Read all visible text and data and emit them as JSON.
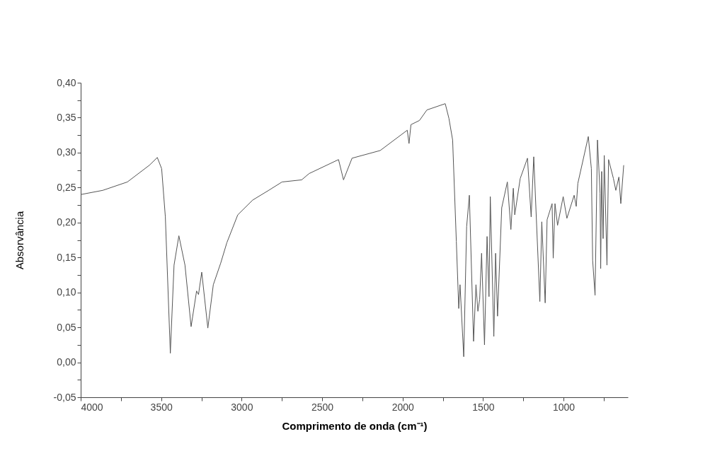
{
  "chart_data": {
    "type": "line",
    "xlabel": "Comprimento de onda (cm⁻¹)",
    "ylabel": "Absorvância",
    "xlim": [
      4000,
      600
    ],
    "ylim": [
      -0.05,
      0.4
    ],
    "xticks": [
      4000,
      {
        "value": 3750,
        "label": null
      },
      3500,
      {
        "value": 3250,
        "label": null
      },
      3000,
      {
        "value": 2750,
        "label": null
      },
      2500,
      {
        "value": 2250,
        "label": null
      },
      2000,
      {
        "value": 1750,
        "label": null
      },
      1500,
      {
        "value": 1250,
        "label": null
      },
      1000,
      {
        "value": 750,
        "label": null
      }
    ],
    "yticks": [
      {
        "value": -0.05,
        "label": "-0,05"
      },
      {
        "value": -0.025,
        "label": null
      },
      {
        "value": 0,
        "label": "0,00"
      },
      {
        "value": 0.025,
        "label": null
      },
      {
        "value": 0.05,
        "label": "0,05"
      },
      {
        "value": 0.075,
        "label": null
      },
      {
        "value": 0.1,
        "label": "0,10"
      },
      {
        "value": 0.125,
        "label": null
      },
      {
        "value": 0.15,
        "label": "0,15"
      },
      {
        "value": 0.175,
        "label": null
      },
      {
        "value": 0.2,
        "label": "0,20"
      },
      {
        "value": 0.225,
        "label": null
      },
      {
        "value": 0.25,
        "label": "0,25"
      },
      {
        "value": 0.275,
        "label": null
      },
      {
        "value": 0.3,
        "label": "0,30"
      },
      {
        "value": 0.325,
        "label": null
      },
      {
        "value": 0.35,
        "label": "0,35"
      },
      {
        "value": 0.375,
        "label": null
      },
      {
        "value": 0.4,
        "label": "0,40"
      }
    ],
    "grid": false,
    "marker": "none",
    "line_style": "solid",
    "series": [
      {
        "color": "#555555",
        "x": [
          4000,
          3863,
          3710,
          3573,
          3524,
          3497,
          3474,
          3443,
          3420,
          3390,
          3352,
          3314,
          3280,
          3268,
          3248,
          3210,
          3176,
          3130,
          3092,
          3024,
          2932,
          2825,
          2749,
          2627,
          2581,
          2398,
          2367,
          2314,
          2139,
          1971,
          1960,
          1948,
          1895,
          1849,
          1735,
          1712,
          1689,
          1666,
          1651,
          1643,
          1620,
          1602,
          1585,
          1559,
          1544,
          1532,
          1521,
          1509,
          1491,
          1475,
          1463,
          1455,
          1433,
          1422,
          1410,
          1384,
          1349,
          1327,
          1312,
          1303,
          1269,
          1224,
          1201,
          1185,
          1147,
          1135,
          1114,
          1102,
          1071,
          1064,
          1053,
          1037,
          1002,
          979,
          934,
          921,
          911,
          846,
          827,
          819,
          804,
          789,
          773,
          769,
          763,
          754,
          747,
          730,
          720,
          690,
          675,
          656,
          644,
          626
        ],
        "values": [
          0.24,
          0.246,
          0.258,
          0.282,
          0.293,
          0.277,
          0.208,
          0.013,
          0.139,
          0.181,
          0.139,
          0.051,
          0.102,
          0.097,
          0.129,
          0.049,
          0.111,
          0.142,
          0.171,
          0.211,
          0.232,
          0.247,
          0.258,
          0.261,
          0.27,
          0.29,
          0.261,
          0.292,
          0.303,
          0.332,
          0.313,
          0.34,
          0.346,
          0.361,
          0.37,
          0.349,
          0.318,
          0.173,
          0.077,
          0.111,
          0.008,
          0.194,
          0.239,
          0.03,
          0.111,
          0.073,
          0.09,
          0.156,
          0.025,
          0.18,
          0.094,
          0.237,
          0.037,
          0.156,
          0.066,
          0.221,
          0.258,
          0.19,
          0.249,
          0.211,
          0.263,
          0.292,
          0.208,
          0.294,
          0.087,
          0.201,
          0.085,
          0.204,
          0.227,
          0.149,
          0.227,
          0.196,
          0.237,
          0.206,
          0.239,
          0.223,
          0.256,
          0.323,
          0.277,
          0.146,
          0.096,
          0.318,
          0.242,
          0.134,
          0.273,
          0.177,
          0.296,
          0.139,
          0.29,
          0.263,
          0.246,
          0.265,
          0.227,
          0.282
        ]
      }
    ]
  }
}
